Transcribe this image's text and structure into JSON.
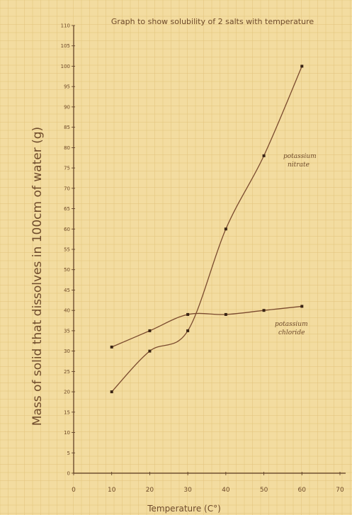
{
  "chart_data": {
    "type": "line",
    "title": "Graph to show solubility of 2 salts with temperature",
    "xlabel": "Temperature (C°)",
    "ylabel": "Mass of solid that dissolves in 100cm of water (g)",
    "xlim": [
      0,
      70
    ],
    "ylim": [
      0,
      110
    ],
    "x_ticks": [
      "0",
      "10",
      "20",
      "30",
      "40",
      "50",
      "60",
      "70"
    ],
    "y_ticks": [
      "0",
      "5",
      "10",
      "15",
      "20",
      "25",
      "30",
      "35",
      "40",
      "45",
      "50",
      "55",
      "60",
      "65",
      "70",
      "75",
      "80",
      "85",
      "90",
      "95",
      "100",
      "105",
      "110"
    ],
    "grid": true,
    "series": [
      {
        "name": "potassium nitrate",
        "annotation_lines": [
          "potassium",
          "nitrate"
        ],
        "color": "#7a4a2e",
        "points": [
          [
            10,
            20
          ],
          [
            20,
            30
          ],
          [
            30,
            35
          ],
          [
            40,
            60
          ],
          [
            50,
            78
          ],
          [
            60,
            100
          ]
        ]
      },
      {
        "name": "potassium chloride",
        "annotation_lines": [
          "potassium",
          "chloride"
        ],
        "color": "#7a4a2e",
        "points": [
          [
            10,
            31
          ],
          [
            20,
            35
          ],
          [
            30,
            39
          ],
          [
            40,
            39
          ],
          [
            50,
            40
          ],
          [
            60,
            41
          ]
        ]
      }
    ]
  }
}
